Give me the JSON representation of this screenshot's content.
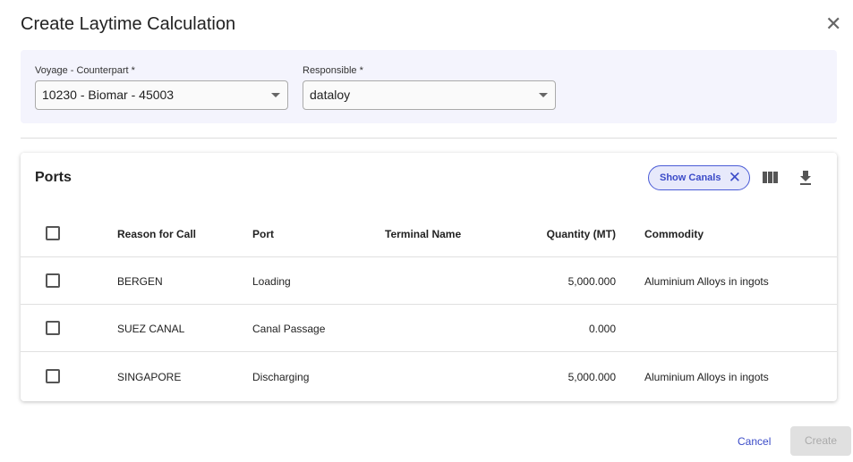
{
  "dialog": {
    "title": "Create Laytime Calculation",
    "close_icon": "close-icon"
  },
  "form": {
    "voyage_label": "Voyage - Counterpart *",
    "voyage_value": "10230 - Biomar - 45003",
    "responsible_label": "Responsible *",
    "responsible_value": "dataloy"
  },
  "ports": {
    "title": "Ports",
    "chip_label": "Show Canals",
    "columns": [
      "Reason for Call",
      "Port",
      "Terminal Name",
      "Quantity (MT)",
      "Commodity"
    ],
    "rows": [
      {
        "c1": "BERGEN",
        "c2": "Loading",
        "c3": "",
        "c4": "5,000.000",
        "c5": "Aluminium Alloys in ingots"
      },
      {
        "c1": "SUEZ CANAL",
        "c2": "Canal Passage",
        "c3": "",
        "c4": "0.000",
        "c5": ""
      },
      {
        "c1": "SINGAPORE",
        "c2": "Discharging",
        "c3": "",
        "c4": "5,000.000",
        "c5": "Aluminium Alloys in ingots"
      }
    ]
  },
  "footer": {
    "cancel": "Cancel",
    "create": "Create"
  },
  "colors": {
    "accent": "#3b4bc8",
    "form_bg": "#f4f4fd"
  }
}
